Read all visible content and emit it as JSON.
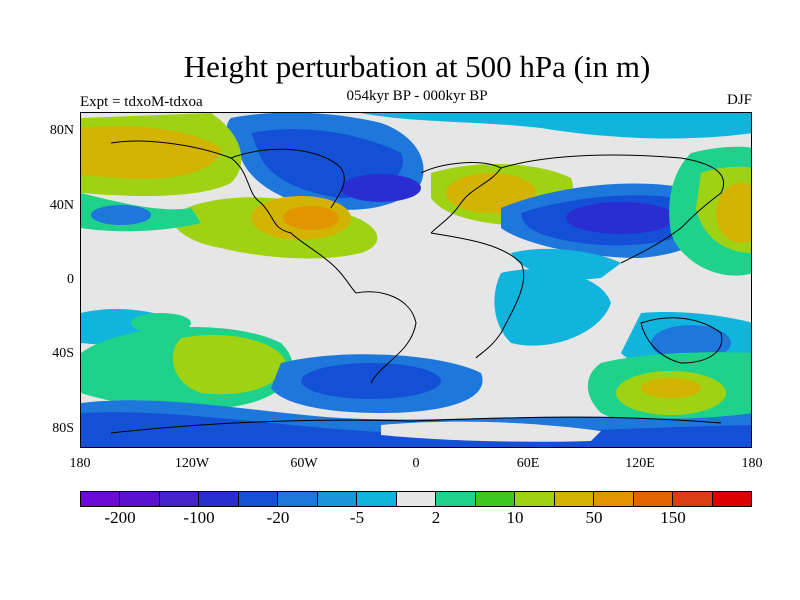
{
  "title": "Height perturbation at 500 hPa (in m)",
  "subtitle": "054kyr BP - 000kyr BP",
  "left_label": "Expt = tdxoM-tdxoa",
  "right_label": "DJF",
  "y_ticks": [
    "80N",
    "40N",
    "0",
    "40S",
    "80S"
  ],
  "x_ticks": [
    "180",
    "120W",
    "60W",
    "0",
    "60E",
    "120E",
    "180"
  ],
  "colorbar": {
    "colors": [
      "#6a0bd6",
      "#5a12d0",
      "#4422cc",
      "#2a2ed2",
      "#1450d6",
      "#1e78dc",
      "#1896dc",
      "#10b4dc",
      "#e6e6e6",
      "#1ed28c",
      "#3cc81e",
      "#a0d214",
      "#d2b400",
      "#e19600",
      "#e16400",
      "#dc3c14",
      "#dc0000"
    ],
    "labels": [
      "-200",
      "-100",
      "-20",
      "-5",
      "2",
      "10",
      "50",
      "150"
    ]
  },
  "colors": {
    "neutral": "#e6e6e6",
    "deep_blue": "#2a2ed2",
    "blue": "#1450d6",
    "mid_blue": "#1e78dc",
    "light_blue": "#10b4dc",
    "teal_green": "#1ed28c",
    "green": "#3cc81e",
    "yellow_green": "#a0d214",
    "yellow": "#d2b400",
    "orange": "#e19600"
  }
}
